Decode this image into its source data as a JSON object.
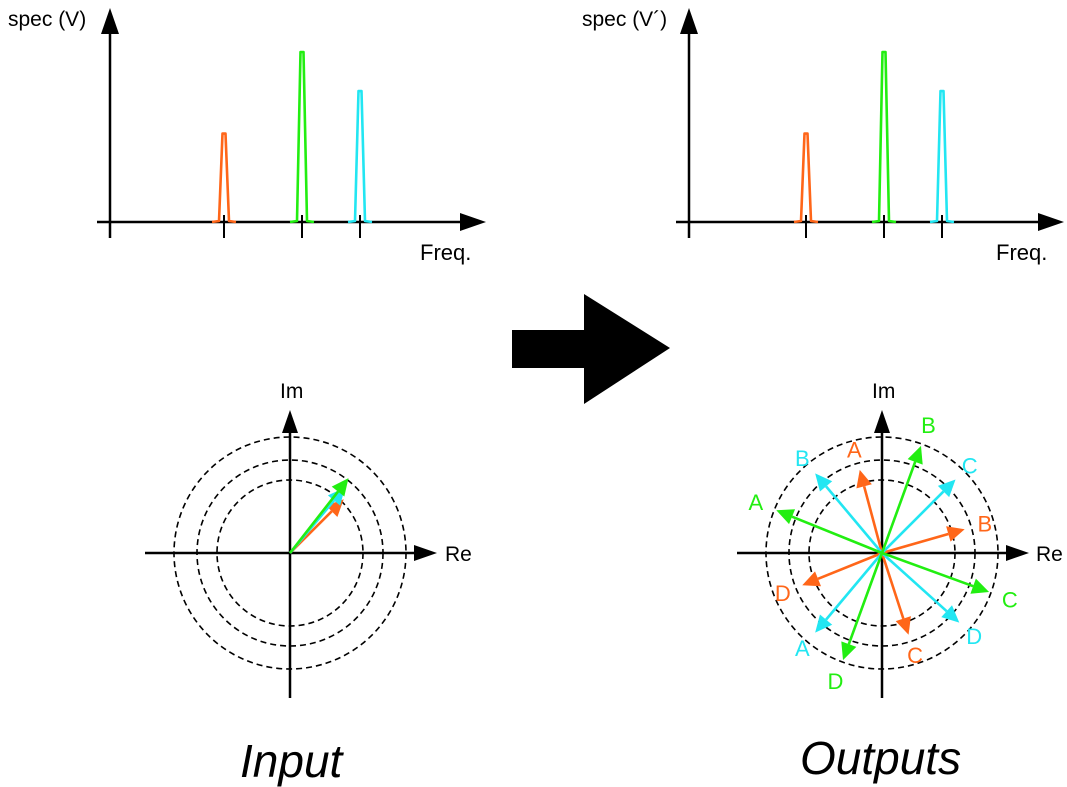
{
  "colors": {
    "orange": "#ff6619",
    "green": "#22ee11",
    "cyan": "#22e6f2",
    "axis": "#000000"
  },
  "spectra": [
    {
      "ylabel": "spec (V)",
      "xlabel": "Freq."
    },
    {
      "ylabel": "spec (V´)",
      "xlabel": "Freq."
    }
  ],
  "spectrum_peaks": [
    {
      "color": "orange",
      "relative_height": 0.52
    },
    {
      "color": "green",
      "relative_height": 1.0
    },
    {
      "color": "cyan",
      "relative_height": 0.77
    }
  ],
  "input_plot": {
    "im_label": "Im",
    "re_label": "Re",
    "caption": "Input",
    "vectors": [
      {
        "color": "orange",
        "angle_deg": 45,
        "length": 0.8
      },
      {
        "color": "cyan",
        "angle_deg": 50,
        "length": 0.9
      },
      {
        "color": "green",
        "angle_deg": 52,
        "length": 1.0
      }
    ]
  },
  "output_plot": {
    "im_label": "Im",
    "re_label": "Re",
    "caption": "Outputs",
    "vectors": [
      {
        "label": "A",
        "color": "orange",
        "angle_deg": 105
      },
      {
        "label": "B",
        "color": "orange",
        "angle_deg": 16
      },
      {
        "label": "C",
        "color": "orange",
        "angle_deg": -72
      },
      {
        "label": "D",
        "color": "orange",
        "angle_deg": -158
      },
      {
        "label": "A",
        "color": "cyan",
        "angle_deg": -130
      },
      {
        "label": "B",
        "color": "cyan",
        "angle_deg": 130
      },
      {
        "label": "C",
        "color": "cyan",
        "angle_deg": 45
      },
      {
        "label": "D",
        "color": "cyan",
        "angle_deg": -42
      },
      {
        "label": "A",
        "color": "green",
        "angle_deg": 158
      },
      {
        "label": "B",
        "color": "green",
        "angle_deg": 70
      },
      {
        "label": "C",
        "color": "green",
        "angle_deg": -20
      },
      {
        "label": "D",
        "color": "green",
        "angle_deg": -110
      }
    ]
  }
}
